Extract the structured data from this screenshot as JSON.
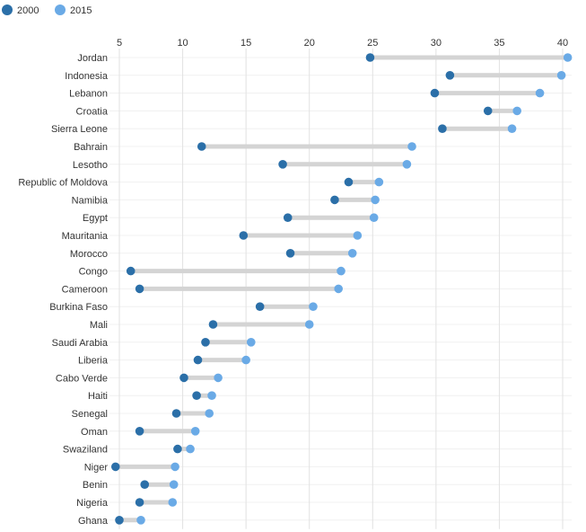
{
  "chart_data": {
    "type": "dumbbell",
    "legend_position": "top-left",
    "grid": true,
    "xlim": [
      4.2,
      40.7
    ],
    "x_ticks": [
      5,
      10,
      15,
      20,
      25,
      30,
      35,
      40
    ],
    "series": [
      {
        "name": "2000",
        "color": "#2b6fa8"
      },
      {
        "name": "2015",
        "color": "#6aaae6"
      }
    ],
    "connector_color": "#d4d4d4",
    "categories": [
      "Jordan",
      "Indonesia",
      "Lebanon",
      "Croatia",
      "Sierra Leone",
      "Bahrain",
      "Lesotho",
      "Republic of Moldova",
      "Namibia",
      "Egypt",
      "Mauritania",
      "Morocco",
      "Congo",
      "Cameroon",
      "Burkina Faso",
      "Mali",
      "Saudi Arabia",
      "Liberia",
      "Cabo Verde",
      "Haiti",
      "Senegal",
      "Oman",
      "Swaziland",
      "Niger",
      "Benin",
      "Nigeria",
      "Ghana"
    ],
    "values_2000": [
      24.8,
      31.1,
      29.9,
      34.1,
      30.5,
      11.5,
      17.9,
      23.1,
      22.0,
      18.3,
      14.8,
      18.5,
      5.9,
      6.6,
      16.1,
      12.4,
      11.8,
      11.2,
      10.1,
      11.1,
      9.5,
      6.6,
      9.6,
      4.7,
      7.0,
      6.6,
      5.0
    ],
    "values_2015": [
      40.4,
      39.9,
      38.2,
      36.4,
      36.0,
      28.1,
      27.7,
      25.5,
      25.2,
      25.1,
      23.8,
      23.4,
      22.5,
      22.3,
      20.3,
      20.0,
      15.4,
      15.0,
      12.8,
      12.3,
      12.1,
      11.0,
      10.6,
      9.4,
      9.3,
      9.2,
      6.7
    ]
  }
}
